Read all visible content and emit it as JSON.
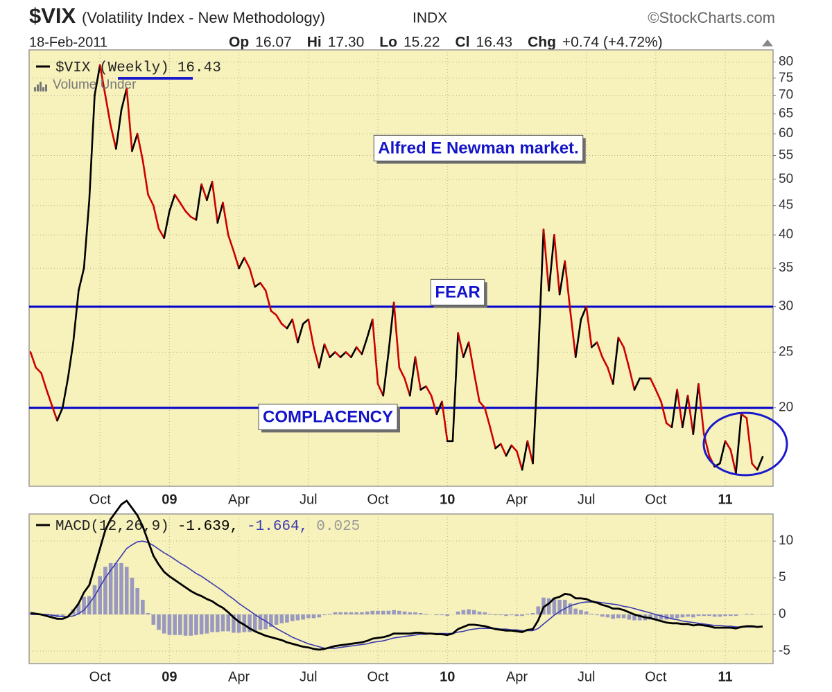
{
  "chart_data": [
    {
      "type": "line",
      "title": "$VIX",
      "subtitle": "(Volatility Index - New Methodology)",
      "exchange": "INDX",
      "source": "©StockCharts.com",
      "date": "18-Feb-2011",
      "quote": [
        {
          "label": "Op",
          "value": "16.07"
        },
        {
          "label": "Hi",
          "value": "17.30"
        },
        {
          "label": "Lo",
          "value": "15.22"
        },
        {
          "label": "Cl",
          "value": "16.43"
        }
      ],
      "change_label": "Chg",
      "change": "+0.74 (+4.72%)",
      "overlay_note": "Volume Under",
      "categories": [
        null,
        null,
        null,
        null,
        null,
        null,
        null,
        null,
        null,
        null,
        null,
        null,
        null,
        "Oct",
        null,
        null,
        null,
        null,
        null,
        null,
        null,
        null,
        null,
        null,
        null,
        null,
        "09",
        null,
        null,
        null,
        null,
        null,
        null,
        null,
        null,
        null,
        null,
        null,
        null,
        "Apr",
        null,
        null,
        null,
        null,
        null,
        null,
        null,
        null,
        null,
        null,
        null,
        null,
        "Jul",
        null,
        null,
        null,
        null,
        null,
        null,
        null,
        null,
        null,
        null,
        null,
        null,
        "Oct",
        null,
        null,
        null,
        null,
        null,
        null,
        null,
        null,
        null,
        null,
        null,
        null,
        "10",
        null,
        null,
        null,
        null,
        null,
        null,
        null,
        null,
        null,
        null,
        null,
        null,
        "Apr",
        null,
        null,
        null,
        null,
        null,
        null,
        null,
        null,
        null,
        null,
        null,
        null,
        "Jul",
        null,
        null,
        null,
        null,
        null,
        null,
        null,
        null,
        null,
        null,
        null,
        null,
        "Oct",
        null,
        null,
        null,
        null,
        null,
        null,
        null,
        null,
        null,
        null,
        null,
        null,
        "11",
        null,
        null,
        null,
        null,
        null,
        null,
        null
      ],
      "series": [
        {
          "name": "$VIX (Weekly)",
          "up_color": "#000000",
          "down_color": "#cc0000",
          "values": [
            25,
            23.5,
            23,
            21.5,
            20.2,
            19,
            20,
            22.5,
            26,
            32,
            35,
            46,
            70,
            79,
            70,
            62,
            56.5,
            66,
            72,
            56,
            60,
            54,
            47,
            45,
            41,
            39.5,
            44,
            47,
            45.5,
            44,
            43,
            42.5,
            49,
            46,
            49.5,
            42,
            45.5,
            40,
            37.5,
            35,
            36.5,
            35,
            32.5,
            33,
            32,
            29.5,
            29,
            28,
            27.5,
            28.5,
            26,
            28,
            28.5,
            25.5,
            23.5,
            25.8,
            24.5,
            25,
            24.5,
            25,
            24.5,
            25.5,
            24.8,
            26.5,
            28.5,
            22,
            21,
            25,
            30.5,
            23.5,
            22.5,
            21,
            24.5,
            21.5,
            21.8,
            21,
            19.5,
            20.5,
            17.5,
            17.5,
            27,
            24.5,
            26,
            23,
            20.5,
            20,
            18.5,
            17,
            17.3,
            16.5,
            17.2,
            16.8,
            15.6,
            17.5,
            16,
            24.5,
            40.9,
            32,
            40,
            31.5,
            36,
            29.5,
            24.5,
            28.5,
            30,
            25.5,
            26,
            24.5,
            23.5,
            22,
            26.5,
            25.5,
            23.5,
            21.5,
            22.5,
            22.5,
            22.5,
            21.5,
            20.5,
            18.8,
            18.5,
            21.5,
            18.5,
            21,
            18,
            22,
            18,
            16.5,
            15.8,
            16,
            17.5,
            16.9,
            15.4,
            19.5,
            19.2,
            16,
            15.6,
            16.43
          ]
        }
      ],
      "ylim": [
        14.6,
        84
      ],
      "log_scale": true,
      "yticks": [
        20,
        25,
        30,
        35,
        40,
        45,
        50,
        55,
        60,
        65,
        70,
        75,
        80
      ],
      "grid": true,
      "reference_lines": [
        {
          "value": 30,
          "label": "FEAR",
          "color": "#0000cc"
        },
        {
          "value": 20,
          "label": "COMPLACENCY",
          "color": "#0000cc"
        }
      ],
      "annotations": [
        {
          "text": "Alfred E Newman market."
        }
      ]
    },
    {
      "type": "macd",
      "categories": [
        null,
        null,
        null,
        null,
        null,
        null,
        null,
        null,
        null,
        null,
        null,
        null,
        null,
        "Oct",
        null,
        null,
        null,
        null,
        null,
        null,
        null,
        null,
        null,
        null,
        null,
        null,
        "09",
        null,
        null,
        null,
        null,
        null,
        null,
        null,
        null,
        null,
        null,
        null,
        null,
        "Apr",
        null,
        null,
        null,
        null,
        null,
        null,
        null,
        null,
        null,
        null,
        null,
        null,
        "Jul",
        null,
        null,
        null,
        null,
        null,
        null,
        null,
        null,
        null,
        null,
        null,
        null,
        "Oct",
        null,
        null,
        null,
        null,
        null,
        null,
        null,
        null,
        null,
        null,
        null,
        null,
        "10",
        null,
        null,
        null,
        null,
        null,
        null,
        null,
        null,
        null,
        null,
        null,
        null,
        "Apr",
        null,
        null,
        null,
        null,
        null,
        null,
        null,
        null,
        null,
        null,
        null,
        null,
        "Jul",
        null,
        null,
        null,
        null,
        null,
        null,
        null,
        null,
        null,
        null,
        null,
        null,
        "Oct",
        null,
        null,
        null,
        null,
        null,
        null,
        null,
        null,
        null,
        null,
        null,
        null,
        "11",
        null,
        null,
        null,
        null,
        null,
        null,
        null
      ],
      "series": [
        {
          "name": "MACD(12,26,9)",
          "color": "#000000",
          "values": [
            0.2,
            0.1,
            0,
            -0.2,
            -0.4,
            -0.6,
            -0.6,
            -0.3,
            0.5,
            1.5,
            3,
            4,
            6.5,
            9,
            11.5,
            13,
            14,
            15,
            15.5,
            14.5,
            13.5,
            12,
            10,
            8,
            6.8,
            5.8,
            5.2,
            4.7,
            4.2,
            3.7,
            3.2,
            2.8,
            2.5,
            2.1,
            1.8,
            1.3,
            0.9,
            0.3,
            -0.4,
            -1,
            -1.4,
            -1.9,
            -2.3,
            -2.6,
            -2.9,
            -3.1,
            -3.3,
            -3.5,
            -3.8,
            -4,
            -4.2,
            -4.4,
            -4.5,
            -4.7,
            -4.8,
            -4.7,
            -4.5,
            -4.3,
            -4.2,
            -4.1,
            -4,
            -3.9,
            -3.8,
            -3.6,
            -3.3,
            -3.2,
            -3.1,
            -2.9,
            -2.6,
            -2.6,
            -2.6,
            -2.6,
            -2.5,
            -2.5,
            -2.6,
            -2.6,
            -2.7,
            -2.7,
            -2.8,
            -2.6,
            -2,
            -1.7,
            -1.4,
            -1.4,
            -1.5,
            -1.6,
            -1.8,
            -2,
            -2.1,
            -2.2,
            -2.2,
            -2.3,
            -2.4,
            -2.1,
            -2,
            -0.8,
            1,
            1.5,
            2.2,
            2.4,
            2.8,
            2.7,
            2.2,
            2.2,
            2.1,
            1.8,
            1.6,
            1.3,
            1.1,
            0.8,
            0.8,
            0.6,
            0.3,
            0,
            -0.2,
            -0.4,
            -0.5,
            -0.7,
            -0.9,
            -1.1,
            -1.2,
            -1.2,
            -1.3,
            -1.3,
            -1.5,
            -1.4,
            -1.5,
            -1.6,
            -1.8,
            -1.8,
            -1.8,
            -1.8,
            -1.9,
            -1.7,
            -1.6,
            -1.6,
            -1.7,
            -1.639
          ]
        },
        {
          "color": "#3a3ab0",
          "values": [
            0,
            0,
            0,
            0,
            -0.1,
            -0.2,
            -0.3,
            -0.3,
            -0.2,
            0.1,
            0.6,
            1.5,
            2.5,
            3.8,
            5,
            6,
            7,
            8,
            9,
            9.5,
            9.9,
            10,
            9.8,
            9.4,
            8.9,
            8.4,
            8,
            7.5,
            7,
            6.6,
            6.1,
            5.6,
            5.2,
            4.7,
            4.2,
            3.7,
            3.2,
            2.6,
            2.1,
            1.5,
            1,
            0.5,
            0,
            -0.5,
            -0.9,
            -1.4,
            -1.9,
            -2.3,
            -2.7,
            -3.1,
            -3.4,
            -3.7,
            -4,
            -4.2,
            -4.4,
            -4.6,
            -4.6,
            -4.6,
            -4.5,
            -4.4,
            -4.3,
            -4.2,
            -4.1,
            -4,
            -3.8,
            -3.7,
            -3.6,
            -3.4,
            -3.2,
            -3.1,
            -3,
            -2.9,
            -2.8,
            -2.7,
            -2.7,
            -2.6,
            -2.6,
            -2.6,
            -2.6,
            -2.6,
            -2.4,
            -2.3,
            -2.1,
            -2,
            -1.9,
            -1.9,
            -1.9,
            -1.9,
            -2,
            -2,
            -2.1,
            -2.1,
            -2.2,
            -2.2,
            -2.2,
            -1.9,
            -1.3,
            -0.7,
            -0.1,
            0.4,
            0.8,
            1.2,
            1.4,
            1.6,
            1.7,
            1.7,
            1.7,
            1.6,
            1.5,
            1.4,
            1.3,
            1.1,
            1,
            0.8,
            0.6,
            0.4,
            0.2,
            0,
            -0.2,
            -0.4,
            -0.6,
            -0.7,
            -0.9,
            -1,
            -1.1,
            -1.2,
            -1.3,
            -1.4,
            -1.5,
            -1.5,
            -1.6,
            -1.6,
            -1.7,
            -1.7,
            -1.7,
            -1.7,
            -1.7,
            -1.664
          ]
        },
        {
          "type": "histogram",
          "color": "#9999bf",
          "values": [
            0.2,
            0.1,
            0,
            -0.2,
            -0.3,
            -0.4,
            -0.3,
            0,
            0.7,
            1.4,
            2.4,
            2.5,
            4,
            5.2,
            6.5,
            7,
            7,
            7,
            6.5,
            5,
            3.6,
            2,
            0.2,
            -1.4,
            -2.1,
            -2.6,
            -2.8,
            -2.8,
            -2.8,
            -2.9,
            -2.9,
            -2.8,
            -2.7,
            -2.6,
            -2.4,
            -2.4,
            -2.3,
            -2.3,
            -2.5,
            -2.5,
            -2.4,
            -2.4,
            -2.3,
            -2.1,
            -2,
            -1.7,
            -1.4,
            -1.2,
            -1.1,
            -0.9,
            -0.8,
            -0.7,
            -0.5,
            -0.5,
            -0.4,
            -0.1,
            0.1,
            0.3,
            0.3,
            0.3,
            0.3,
            0.3,
            0.3,
            0.4,
            0.5,
            0.5,
            0.5,
            0.5,
            0.6,
            0.5,
            0.4,
            0.3,
            0.3,
            0.2,
            0.1,
            0,
            -0.1,
            -0.1,
            -0.2,
            0,
            0.4,
            0.6,
            0.7,
            0.6,
            0.4,
            0.3,
            0.1,
            -0.1,
            -0.1,
            -0.2,
            -0.1,
            -0.2,
            -0.2,
            0.1,
            0.2,
            1.1,
            2.3,
            2.2,
            2.3,
            2,
            2,
            1.5,
            0.8,
            0.6,
            0.4,
            0.1,
            -0.1,
            -0.3,
            -0.4,
            -0.6,
            -0.5,
            -0.5,
            -0.7,
            -0.8,
            -0.8,
            -0.8,
            -0.7,
            -0.7,
            -0.7,
            -0.7,
            -0.6,
            -0.5,
            -0.4,
            -0.3,
            -0.4,
            -0.2,
            -0.2,
            -0.2,
            -0.3,
            -0.3,
            -0.2,
            -0.2,
            -0.2,
            0,
            0.1,
            0.1,
            0,
            0.025
          ]
        }
      ],
      "legend_labels": [
        "-1.639,",
        "-1.664,",
        "0.025"
      ],
      "ylim": [
        -6.7,
        13.7
      ],
      "yticks": [
        10,
        5,
        0,
        -5
      ],
      "grid": true
    }
  ]
}
